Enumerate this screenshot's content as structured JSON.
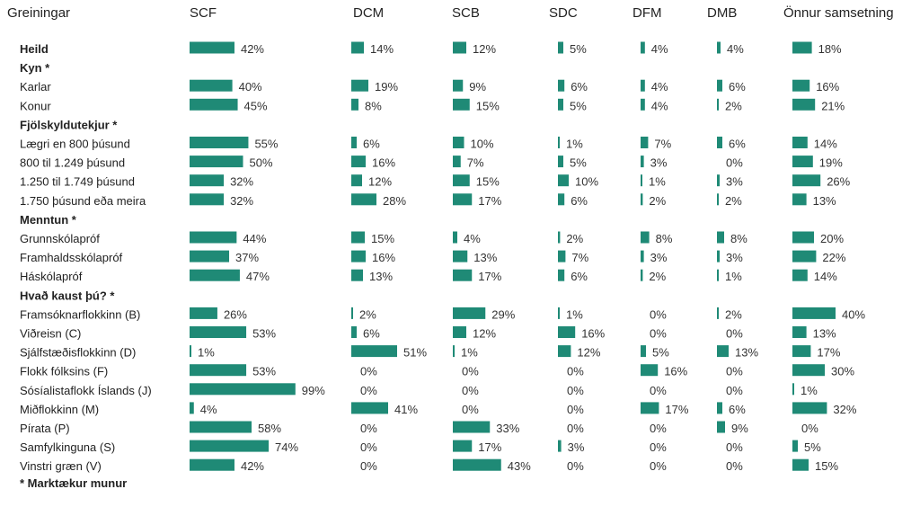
{
  "chart_data": {
    "type": "bar",
    "orientation": "horizontal",
    "corner_label": "Greiningar",
    "columns": [
      "SCF",
      "DCM",
      "SCB",
      "SDC",
      "DFM",
      "DMB",
      "Önnur samsetning"
    ],
    "bar_color": "#1f8a76",
    "rows": [
      {
        "label": "Heild",
        "kind": "row",
        "values": [
          42,
          14,
          12,
          5,
          4,
          4,
          18
        ]
      },
      {
        "label": "Kyn *",
        "kind": "group"
      },
      {
        "label": "Karlar",
        "kind": "row",
        "values": [
          40,
          19,
          9,
          6,
          4,
          6,
          16
        ]
      },
      {
        "label": "Konur",
        "kind": "row",
        "values": [
          45,
          8,
          15,
          5,
          4,
          2,
          21
        ]
      },
      {
        "label": "Fjölskyldutekjur *",
        "kind": "group"
      },
      {
        "label": "Lægri en 800 þúsund",
        "kind": "row",
        "values": [
          55,
          6,
          10,
          1,
          7,
          6,
          14
        ]
      },
      {
        "label": "800 til 1.249 þúsund",
        "kind": "row",
        "values": [
          50,
          16,
          7,
          5,
          3,
          0,
          19
        ]
      },
      {
        "label": "1.250 til 1.749 þúsund",
        "kind": "row",
        "values": [
          32,
          12,
          15,
          10,
          1,
          3,
          26
        ]
      },
      {
        "label": "1.750 þúsund eða meira",
        "kind": "row",
        "values": [
          32,
          28,
          17,
          6,
          2,
          2,
          13
        ]
      },
      {
        "label": "Menntun *",
        "kind": "group"
      },
      {
        "label": "Grunnskólapróf",
        "kind": "row",
        "values": [
          44,
          15,
          4,
          2,
          8,
          8,
          20
        ]
      },
      {
        "label": "Framhaldsskólapróf",
        "kind": "row",
        "values": [
          37,
          16,
          13,
          7,
          3,
          3,
          22
        ]
      },
      {
        "label": "Háskólapróf",
        "kind": "row",
        "values": [
          47,
          13,
          17,
          6,
          2,
          1,
          14
        ]
      },
      {
        "label": "Hvað kaust þú? *",
        "kind": "group"
      },
      {
        "label": "Framsóknarflokkinn (B)",
        "kind": "row",
        "values": [
          26,
          2,
          29,
          1,
          0,
          2,
          40
        ]
      },
      {
        "label": "Viðreisn (C)",
        "kind": "row",
        "values": [
          53,
          6,
          12,
          16,
          0,
          0,
          13
        ]
      },
      {
        "label": "Sjálfstæðisflokkinn (D)",
        "kind": "row",
        "values": [
          1,
          51,
          1,
          12,
          5,
          13,
          17
        ]
      },
      {
        "label": "Flokk fólksins (F)",
        "kind": "row",
        "values": [
          53,
          0,
          0,
          0,
          16,
          0,
          30
        ]
      },
      {
        "label": "Sósíalistaflokk Íslands (J)",
        "kind": "row",
        "values": [
          99,
          0,
          0,
          0,
          0,
          0,
          1
        ]
      },
      {
        "label": "Miðflokkinn (M)",
        "kind": "row",
        "values": [
          4,
          41,
          0,
          0,
          17,
          6,
          32
        ]
      },
      {
        "label": "Pírata (P)",
        "kind": "row",
        "values": [
          58,
          0,
          33,
          0,
          0,
          9,
          0
        ]
      },
      {
        "label": "Samfylkinguna (S)",
        "kind": "row",
        "values": [
          74,
          0,
          17,
          3,
          0,
          0,
          5
        ]
      },
      {
        "label": "Vinstri græn (V)",
        "kind": "row",
        "values": [
          42,
          0,
          43,
          0,
          0,
          0,
          15
        ]
      }
    ],
    "footnote": "* Marktækur munur",
    "value_suffix": "%"
  }
}
